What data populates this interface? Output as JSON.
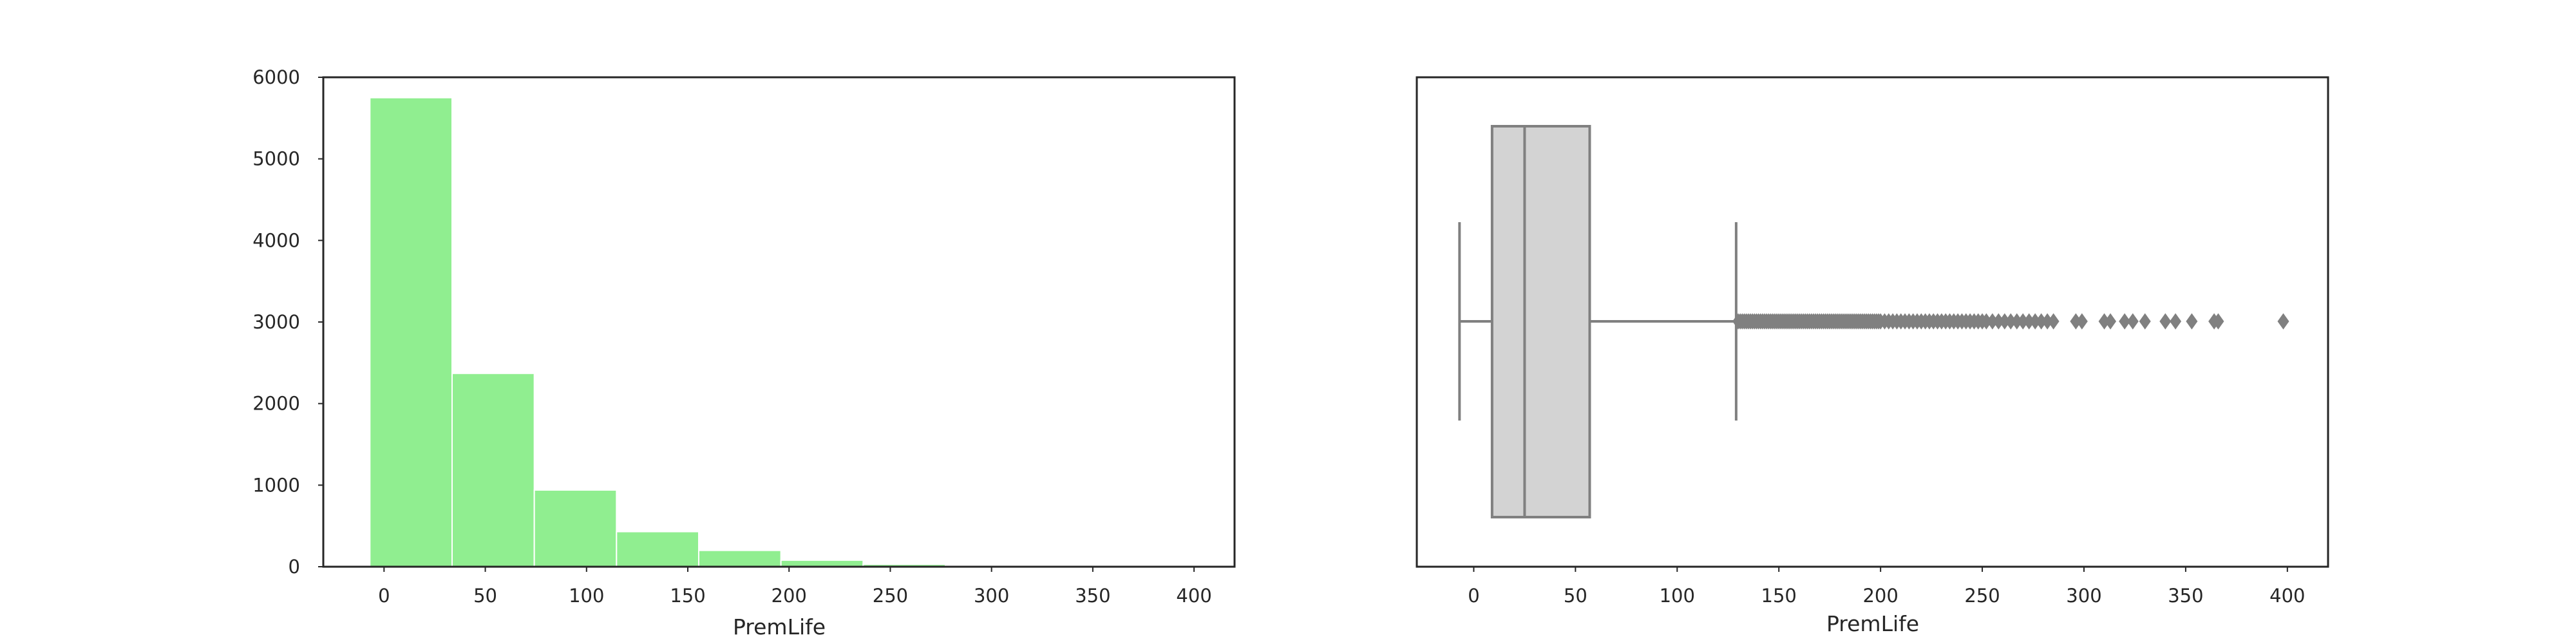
{
  "chart_data": [
    {
      "type": "bar",
      "subtype": "histogram",
      "xlabel": "PremLife",
      "ylabel": "",
      "xlim": [
        -30,
        420
      ],
      "ylim": [
        0,
        6000
      ],
      "xticks": [
        0,
        50,
        100,
        150,
        200,
        250,
        300,
        350,
        400
      ],
      "yticks": [
        0,
        1000,
        2000,
        3000,
        4000,
        5000,
        6000
      ],
      "bar_color": "#90ee90",
      "bins": [
        {
          "x0": -7.0,
          "x1": 33.6,
          "count": 5750
        },
        {
          "x0": 33.6,
          "x1": 74.2,
          "count": 2370
        },
        {
          "x0": 74.2,
          "x1": 114.8,
          "count": 940
        },
        {
          "x0": 114.8,
          "x1": 155.4,
          "count": 430
        },
        {
          "x0": 155.4,
          "x1": 196.0,
          "count": 200
        },
        {
          "x0": 196.0,
          "x1": 236.6,
          "count": 80
        },
        {
          "x0": 236.6,
          "x1": 277.2,
          "count": 30
        },
        {
          "x0": 277.2,
          "x1": 317.8,
          "count": 10
        },
        {
          "x0": 317.8,
          "x1": 358.4,
          "count": 5
        },
        {
          "x0": 358.4,
          "x1": 399.0,
          "count": 2
        }
      ],
      "grid": false
    },
    {
      "type": "box",
      "xlabel": "PremLife",
      "xlim": [
        -28,
        420
      ],
      "xticks": [
        0,
        50,
        100,
        150,
        200,
        250,
        300,
        350,
        400
      ],
      "box_color": "#d3d3d3",
      "line_color": "#808080",
      "whisker_low": -7,
      "q1": 9,
      "median": 25,
      "q3": 57,
      "whisker_high": 129,
      "outliers": [
        130,
        131,
        132,
        133,
        134,
        135,
        136,
        137,
        138,
        139,
        140,
        141,
        142,
        143,
        144,
        145,
        146,
        147,
        148,
        149,
        150,
        151,
        152,
        153,
        154,
        155,
        156,
        157,
        158,
        159,
        160,
        161,
        162,
        163,
        164,
        165,
        166,
        167,
        168,
        169,
        170,
        171,
        172,
        173,
        174,
        175,
        176,
        177,
        178,
        179,
        180,
        181,
        182,
        183,
        184,
        185,
        186,
        187,
        188,
        189,
        190,
        191,
        192,
        193,
        194,
        195,
        196,
        197,
        198,
        199,
        200,
        202,
        204,
        206,
        208,
        210,
        212,
        214,
        216,
        218,
        220,
        222,
        224,
        226,
        228,
        230,
        232,
        234,
        236,
        238,
        240,
        242,
        244,
        246,
        248,
        250,
        252,
        255,
        258,
        261,
        264,
        267,
        270,
        273,
        276,
        279,
        282,
        285,
        296,
        299,
        310,
        313,
        320,
        324,
        330,
        340,
        345,
        353,
        364,
        366,
        398
      ],
      "grid": false
    }
  ]
}
